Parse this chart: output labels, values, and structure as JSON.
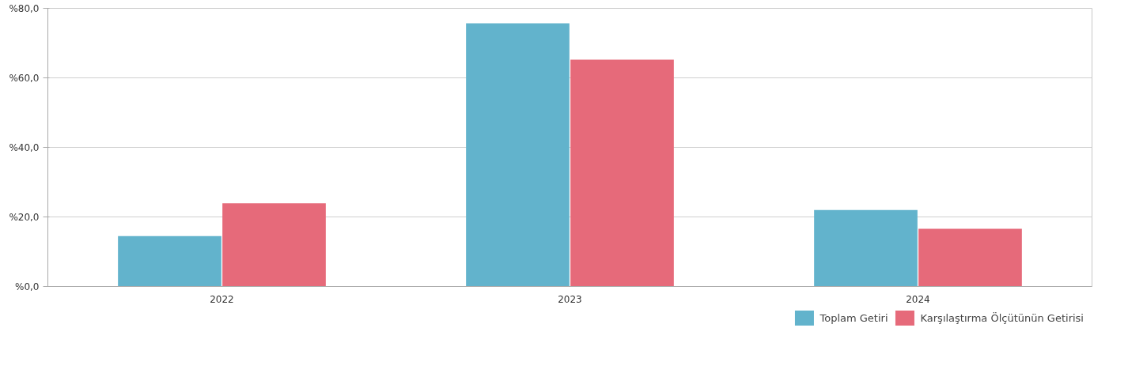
{
  "chart_data": {
    "type": "bar",
    "categories": [
      "2022",
      "2023",
      "2024"
    ],
    "series": [
      {
        "name": "Toplam Getiri",
        "color": "#62b3cc",
        "values": [
          14.5,
          75.7,
          22.0
        ]
      },
      {
        "name": "Karşılaştırma Ölçütünün Getirisi",
        "color": "#e66a7a",
        "values": [
          23.9,
          65.2,
          16.6
        ]
      }
    ],
    "ylim": [
      0,
      80
    ],
    "yticks": [
      {
        "value": 0,
        "label": "%0,0"
      },
      {
        "value": 20,
        "label": "%20,0"
      },
      {
        "value": 40,
        "label": "%40,0"
      },
      {
        "value": 60,
        "label": "%60,0"
      },
      {
        "value": 80,
        "label": "%80,0"
      }
    ],
    "grid": "y",
    "legend": "bottom right"
  }
}
